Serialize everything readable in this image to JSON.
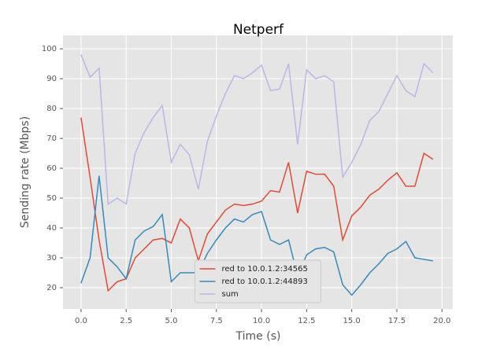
{
  "chart_data": {
    "type": "line",
    "title": "Netperf",
    "x_label": "Time (s)",
    "y_label": "Sending rate (Mbps)",
    "x": [
      0,
      0.5,
      1,
      1.5,
      2,
      2.5,
      3,
      3.5,
      4,
      4.5,
      5,
      5.5,
      6,
      6.5,
      7,
      7.5,
      8,
      8.5,
      9,
      9.5,
      10,
      10.5,
      11,
      11.5,
      12,
      12.5,
      13,
      13.5,
      14,
      14.5,
      15,
      15.5,
      16,
      16.5,
      17,
      17.5,
      18,
      18.5,
      19,
      19.5
    ],
    "series": [
      {
        "name": "red to 10.0.1.2:34565",
        "color": "#e24a33",
        "values": [
          77,
          57,
          36,
          19,
          22,
          23,
          30,
          33,
          36,
          36.5,
          35,
          43,
          40,
          29,
          38,
          42,
          46,
          48,
          47.5,
          48,
          49,
          52.5,
          52,
          62,
          45,
          59,
          58,
          58,
          54,
          36,
          44,
          47,
          51,
          53,
          56,
          58.5,
          54,
          54,
          65,
          63
        ]
      },
      {
        "name": "red to 10.0.1.2:44893",
        "color": "#348abd",
        "values": [
          21.5,
          30,
          57.5,
          30,
          27,
          23,
          36,
          39,
          40.5,
          44.5,
          22,
          25,
          25,
          25,
          31.5,
          36,
          40,
          43,
          42,
          44.5,
          45.5,
          36,
          34.5,
          36,
          24,
          31,
          33,
          33.5,
          32,
          21,
          17.5,
          21,
          25,
          28,
          31.5,
          33,
          35.5,
          30,
          29.5,
          29
        ]
      },
      {
        "name": "sum",
        "color": "#bbb6e6",
        "values": [
          98,
          90.5,
          93.5,
          48,
          50,
          48,
          65,
          72,
          77,
          81,
          62,
          68,
          64.5,
          53,
          69,
          77.5,
          85,
          91,
          90,
          92,
          94.5,
          86,
          86.5,
          95,
          68,
          93,
          90,
          91,
          89,
          57,
          62,
          68,
          76,
          79,
          85,
          91,
          86,
          84,
          95,
          92
        ]
      }
    ],
    "xlim": [
      -1,
      20.6
    ],
    "ylim": [
      12.9,
      104.5
    ],
    "xticks": [
      {
        "value": 0,
        "label": "0.0"
      },
      {
        "value": 2.5,
        "label": "2.5"
      },
      {
        "value": 5,
        "label": "5.0"
      },
      {
        "value": 7.5,
        "label": "7.5"
      },
      {
        "value": 10,
        "label": "10.0"
      },
      {
        "value": 12.5,
        "label": "12.5"
      },
      {
        "value": 15,
        "label": "15.0"
      },
      {
        "value": 17.5,
        "label": "17.5"
      },
      {
        "value": 20,
        "label": "20.0"
      }
    ],
    "yticks": [
      20,
      30,
      40,
      50,
      60,
      70,
      80,
      90,
      100
    ],
    "grid": true,
    "legend": "lower center"
  }
}
